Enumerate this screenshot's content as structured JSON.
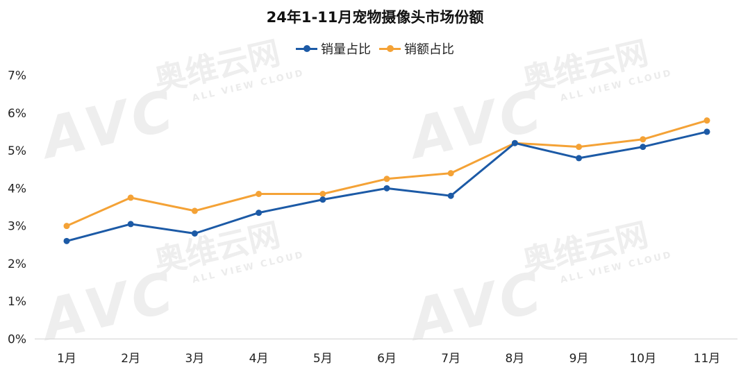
{
  "watermark": {
    "logo": "AVC",
    "cn": "奥维云网",
    "en": "ALL VIEW CLOUD"
  },
  "chart_data": {
    "type": "line",
    "title": "24年1-11月宠物摄像头市场份额",
    "xlabel": "",
    "ylabel": "",
    "categories": [
      "1月",
      "2月",
      "3月",
      "4月",
      "5月",
      "6月",
      "7月",
      "8月",
      "9月",
      "10月",
      "11月"
    ],
    "series": [
      {
        "name": "销量占比",
        "color": "#1c5aa6",
        "values": [
          2.6,
          3.05,
          2.8,
          3.35,
          3.7,
          4.0,
          3.8,
          5.2,
          4.8,
          5.1,
          5.5
        ]
      },
      {
        "name": "销额占比",
        "color": "#f4a236",
        "values": [
          3.0,
          3.75,
          3.4,
          3.85,
          3.85,
          4.25,
          4.4,
          5.2,
          5.1,
          5.3,
          5.8
        ]
      }
    ],
    "ylim": [
      0,
      7
    ],
    "yticks": [
      0,
      1,
      2,
      3,
      4,
      5,
      6,
      7
    ],
    "ytick_labels": [
      "0%",
      "1%",
      "2%",
      "3%",
      "4%",
      "5%",
      "6%",
      "7%"
    ],
    "grid": false,
    "legend": "top-center",
    "axis_color": "#d9d9d9"
  }
}
